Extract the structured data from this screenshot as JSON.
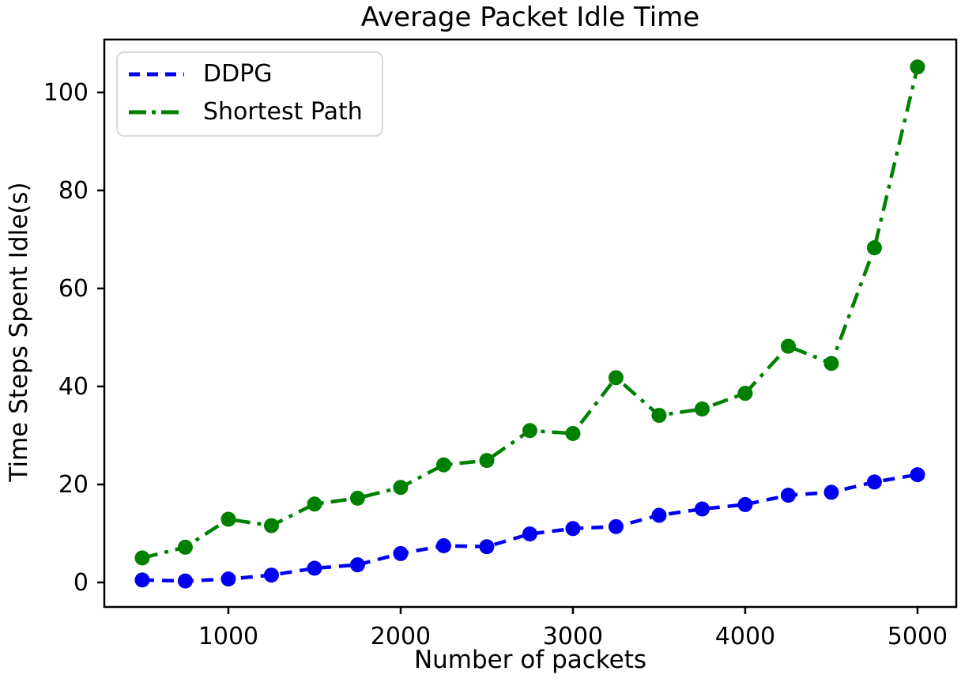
{
  "figure": {
    "title": "Average Packet Idle Time",
    "xlabel": "Number of packets",
    "ylabel": "Time Steps Spent Idle(s)"
  },
  "legend": {
    "position": "upper left",
    "entries": [
      {
        "label": "DDPG",
        "color": "#0000f0",
        "dash": "14 9"
      },
      {
        "label": "Shortest Path",
        "color": "#008000",
        "dash": "22 7 5 7"
      }
    ]
  },
  "chart_data": {
    "type": "line",
    "title": "Average Packet Idle Time",
    "xlabel": "Number of packets",
    "ylabel": "Time Steps Spent Idle(s)",
    "grid": false,
    "legend_position": "upper left",
    "xlim": [
      280,
      5225
    ],
    "ylim": [
      -5,
      110.8
    ],
    "xticks": [
      1000,
      2000,
      3000,
      4000,
      5000
    ],
    "yticks": [
      0,
      20,
      40,
      60,
      80,
      100
    ],
    "x": [
      500,
      750,
      1000,
      1250,
      1500,
      1750,
      2000,
      2250,
      2500,
      2750,
      3000,
      3250,
      3500,
      3750,
      4000,
      4250,
      4500,
      4750,
      5000
    ],
    "series": [
      {
        "name": "DDPG",
        "color": "#0000f0",
        "linestyle": "dashed",
        "marker": "circle",
        "values": [
          0.5,
          0.3,
          0.7,
          1.5,
          2.9,
          3.6,
          5.9,
          7.5,
          7.3,
          9.9,
          11.0,
          11.4,
          13.7,
          15.0,
          15.9,
          17.8,
          18.4,
          20.5,
          22.0
        ]
      },
      {
        "name": "Shortest Path",
        "color": "#008000",
        "linestyle": "dashdot",
        "marker": "circle",
        "values": [
          5.0,
          7.2,
          12.9,
          11.6,
          16.0,
          17.2,
          19.4,
          24.0,
          24.9,
          31.0,
          30.4,
          41.8,
          34.1,
          35.4,
          38.6,
          48.2,
          44.7,
          68.3,
          105.2
        ]
      }
    ]
  }
}
